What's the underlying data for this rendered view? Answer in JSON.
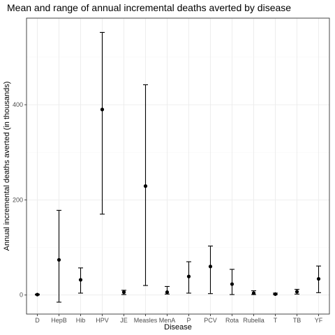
{
  "chart_data": {
    "type": "scatter",
    "title": "Mean and range of annual incremental deaths averted by disease",
    "xlabel": "Disease",
    "ylabel": "Annual incremental deaths averted (in thousands)",
    "categories": [
      "D",
      "HepB",
      "Hib",
      "HPV",
      "JE",
      "Measles",
      "MenA",
      "P",
      "PCV",
      "Rota",
      "Rubella",
      "T",
      "TB",
      "YF"
    ],
    "mean": [
      1,
      74,
      32,
      390,
      6,
      229,
      6,
      39,
      60,
      23,
      4,
      2,
      7,
      34
    ],
    "min": [
      0,
      -15,
      4,
      170,
      1,
      20,
      2,
      4,
      3,
      1,
      1,
      1,
      2,
      5
    ],
    "max": [
      2,
      178,
      57,
      552,
      10,
      442,
      18,
      70,
      103,
      54,
      9,
      4,
      12,
      61
    ],
    "ylim": [
      -40,
      582
    ],
    "yticks": [
      0,
      200,
      400
    ],
    "grid": true,
    "legend": "none"
  }
}
